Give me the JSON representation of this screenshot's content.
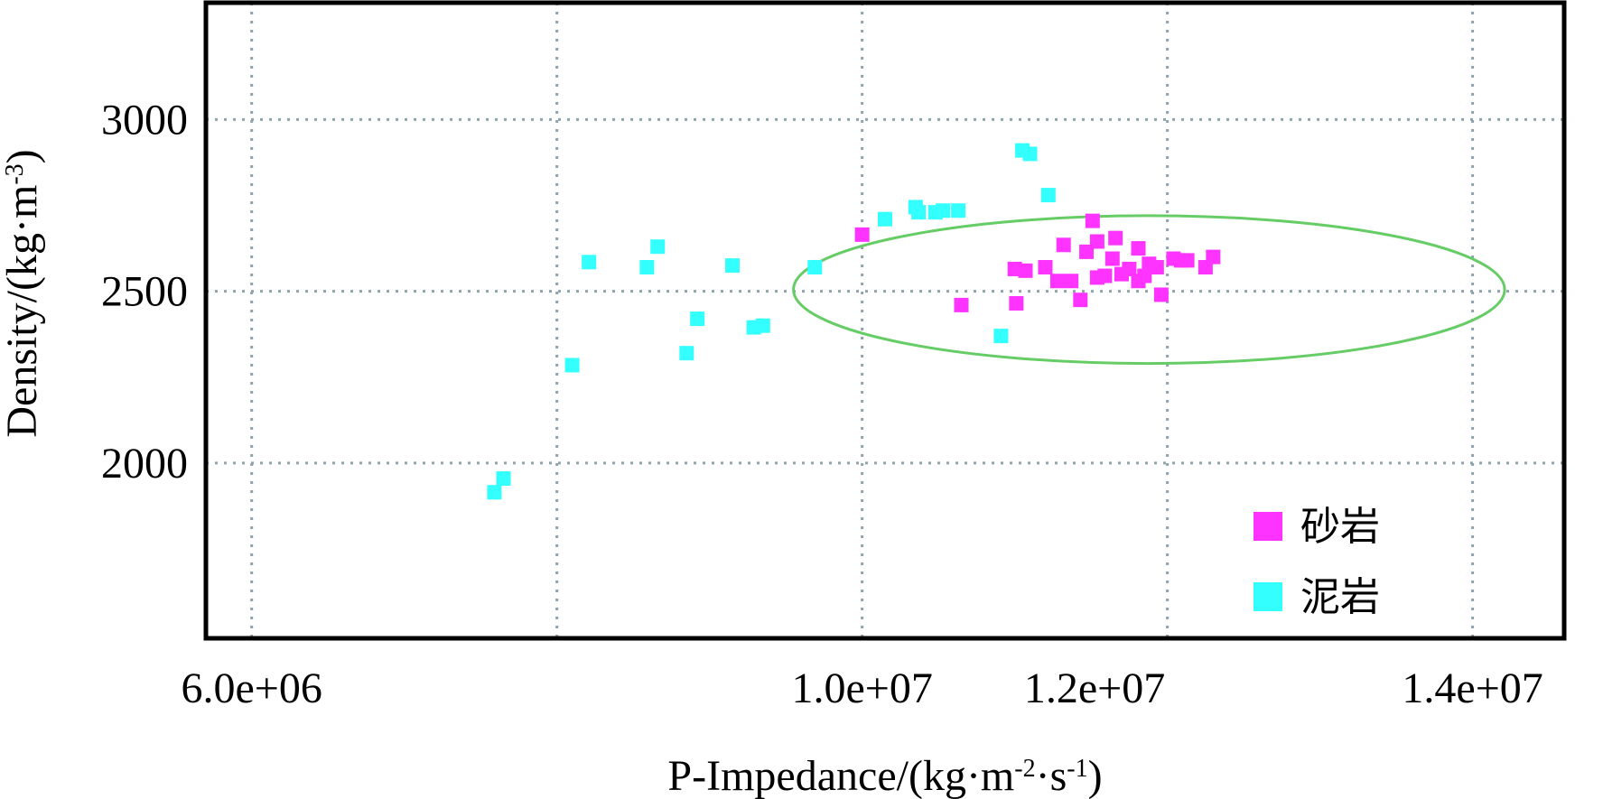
{
  "chart_data": {
    "type": "scatter",
    "title": "",
    "xlabel": "P-Impedance/(kg·m-2·s-1)",
    "xlabel_main": "P-Impedance/(kg·m",
    "xlabel_sup1": "-2",
    "xlabel_mid": "·s",
    "xlabel_sup2": "-1",
    "xlabel_end": ")",
    "ylabel": "Density/(kg·m-3)",
    "ylabel_main": "Density/(kg·m",
    "ylabel_sup": "-3",
    "ylabel_end": ")",
    "xlim": [
      5700000,
      14600000
    ],
    "ylim": [
      1490,
      3340
    ],
    "x_ticks": [
      6000000,
      8000000,
      10000000,
      12000000,
      14000000
    ],
    "x_tick_labels": [
      "6.0e+06",
      "",
      "1.0e+07",
      "",
      "1.4e+07"
    ],
    "x_tick_label_1_2e7": "1.2e+07",
    "y_ticks": [
      2000,
      2500,
      3000
    ],
    "y_tick_labels": [
      "2000",
      "2500",
      "3000"
    ],
    "grid": true,
    "legend_position": "bottom-right",
    "colors": {
      "sandstone": "#ff33ff",
      "mudstone": "#33ffff",
      "ellipse": "#66cc66"
    },
    "series": [
      {
        "name": "砂岩",
        "color": "#ff33ff",
        "points": [
          [
            10000000,
            2665
          ],
          [
            10650000,
            2460
          ],
          [
            11010000,
            2465
          ],
          [
            11000000,
            2565
          ],
          [
            11070000,
            2560
          ],
          [
            11200000,
            2570
          ],
          [
            11280000,
            2530
          ],
          [
            11320000,
            2635
          ],
          [
            11370000,
            2530
          ],
          [
            11430000,
            2475
          ],
          [
            11470000,
            2615
          ],
          [
            11510000,
            2705
          ],
          [
            11540000,
            2645
          ],
          [
            11540000,
            2540
          ],
          [
            11590000,
            2545
          ],
          [
            11640000,
            2595
          ],
          [
            11660000,
            2655
          ],
          [
            11700000,
            2550
          ],
          [
            11750000,
            2565
          ],
          [
            11810000,
            2625
          ],
          [
            11810000,
            2530
          ],
          [
            11850000,
            2545
          ],
          [
            11880000,
            2580
          ],
          [
            11930000,
            2570
          ],
          [
            11960000,
            2490
          ],
          [
            12040000,
            2595
          ],
          [
            12090000,
            2590
          ],
          [
            12130000,
            2590
          ],
          [
            12250000,
            2570
          ],
          [
            12300000,
            2600
          ]
        ]
      },
      {
        "name": "泥岩",
        "color": "#33ffff",
        "points": [
          [
            7590000,
            1915
          ],
          [
            7650000,
            1955
          ],
          [
            8100000,
            2285
          ],
          [
            8210000,
            2585
          ],
          [
            8590000,
            2570
          ],
          [
            8660000,
            2630
          ],
          [
            8850000,
            2320
          ],
          [
            8920000,
            2420
          ],
          [
            9150000,
            2575
          ],
          [
            9290000,
            2395
          ],
          [
            9350000,
            2400
          ],
          [
            9690000,
            2570
          ],
          [
            10150000,
            2710
          ],
          [
            10350000,
            2745
          ],
          [
            10370000,
            2730
          ],
          [
            10480000,
            2730
          ],
          [
            10530000,
            2735
          ],
          [
            10630000,
            2735
          ],
          [
            10910000,
            2370
          ],
          [
            11050000,
            2910
          ],
          [
            11100000,
            2900
          ],
          [
            11220000,
            2780
          ]
        ]
      }
    ],
    "annotations": [
      {
        "type": "ellipse",
        "center": [
          11880000,
          2505
        ],
        "radius_x": 2330000,
        "radius_y": 215,
        "color": "#66cc66"
      }
    ]
  }
}
